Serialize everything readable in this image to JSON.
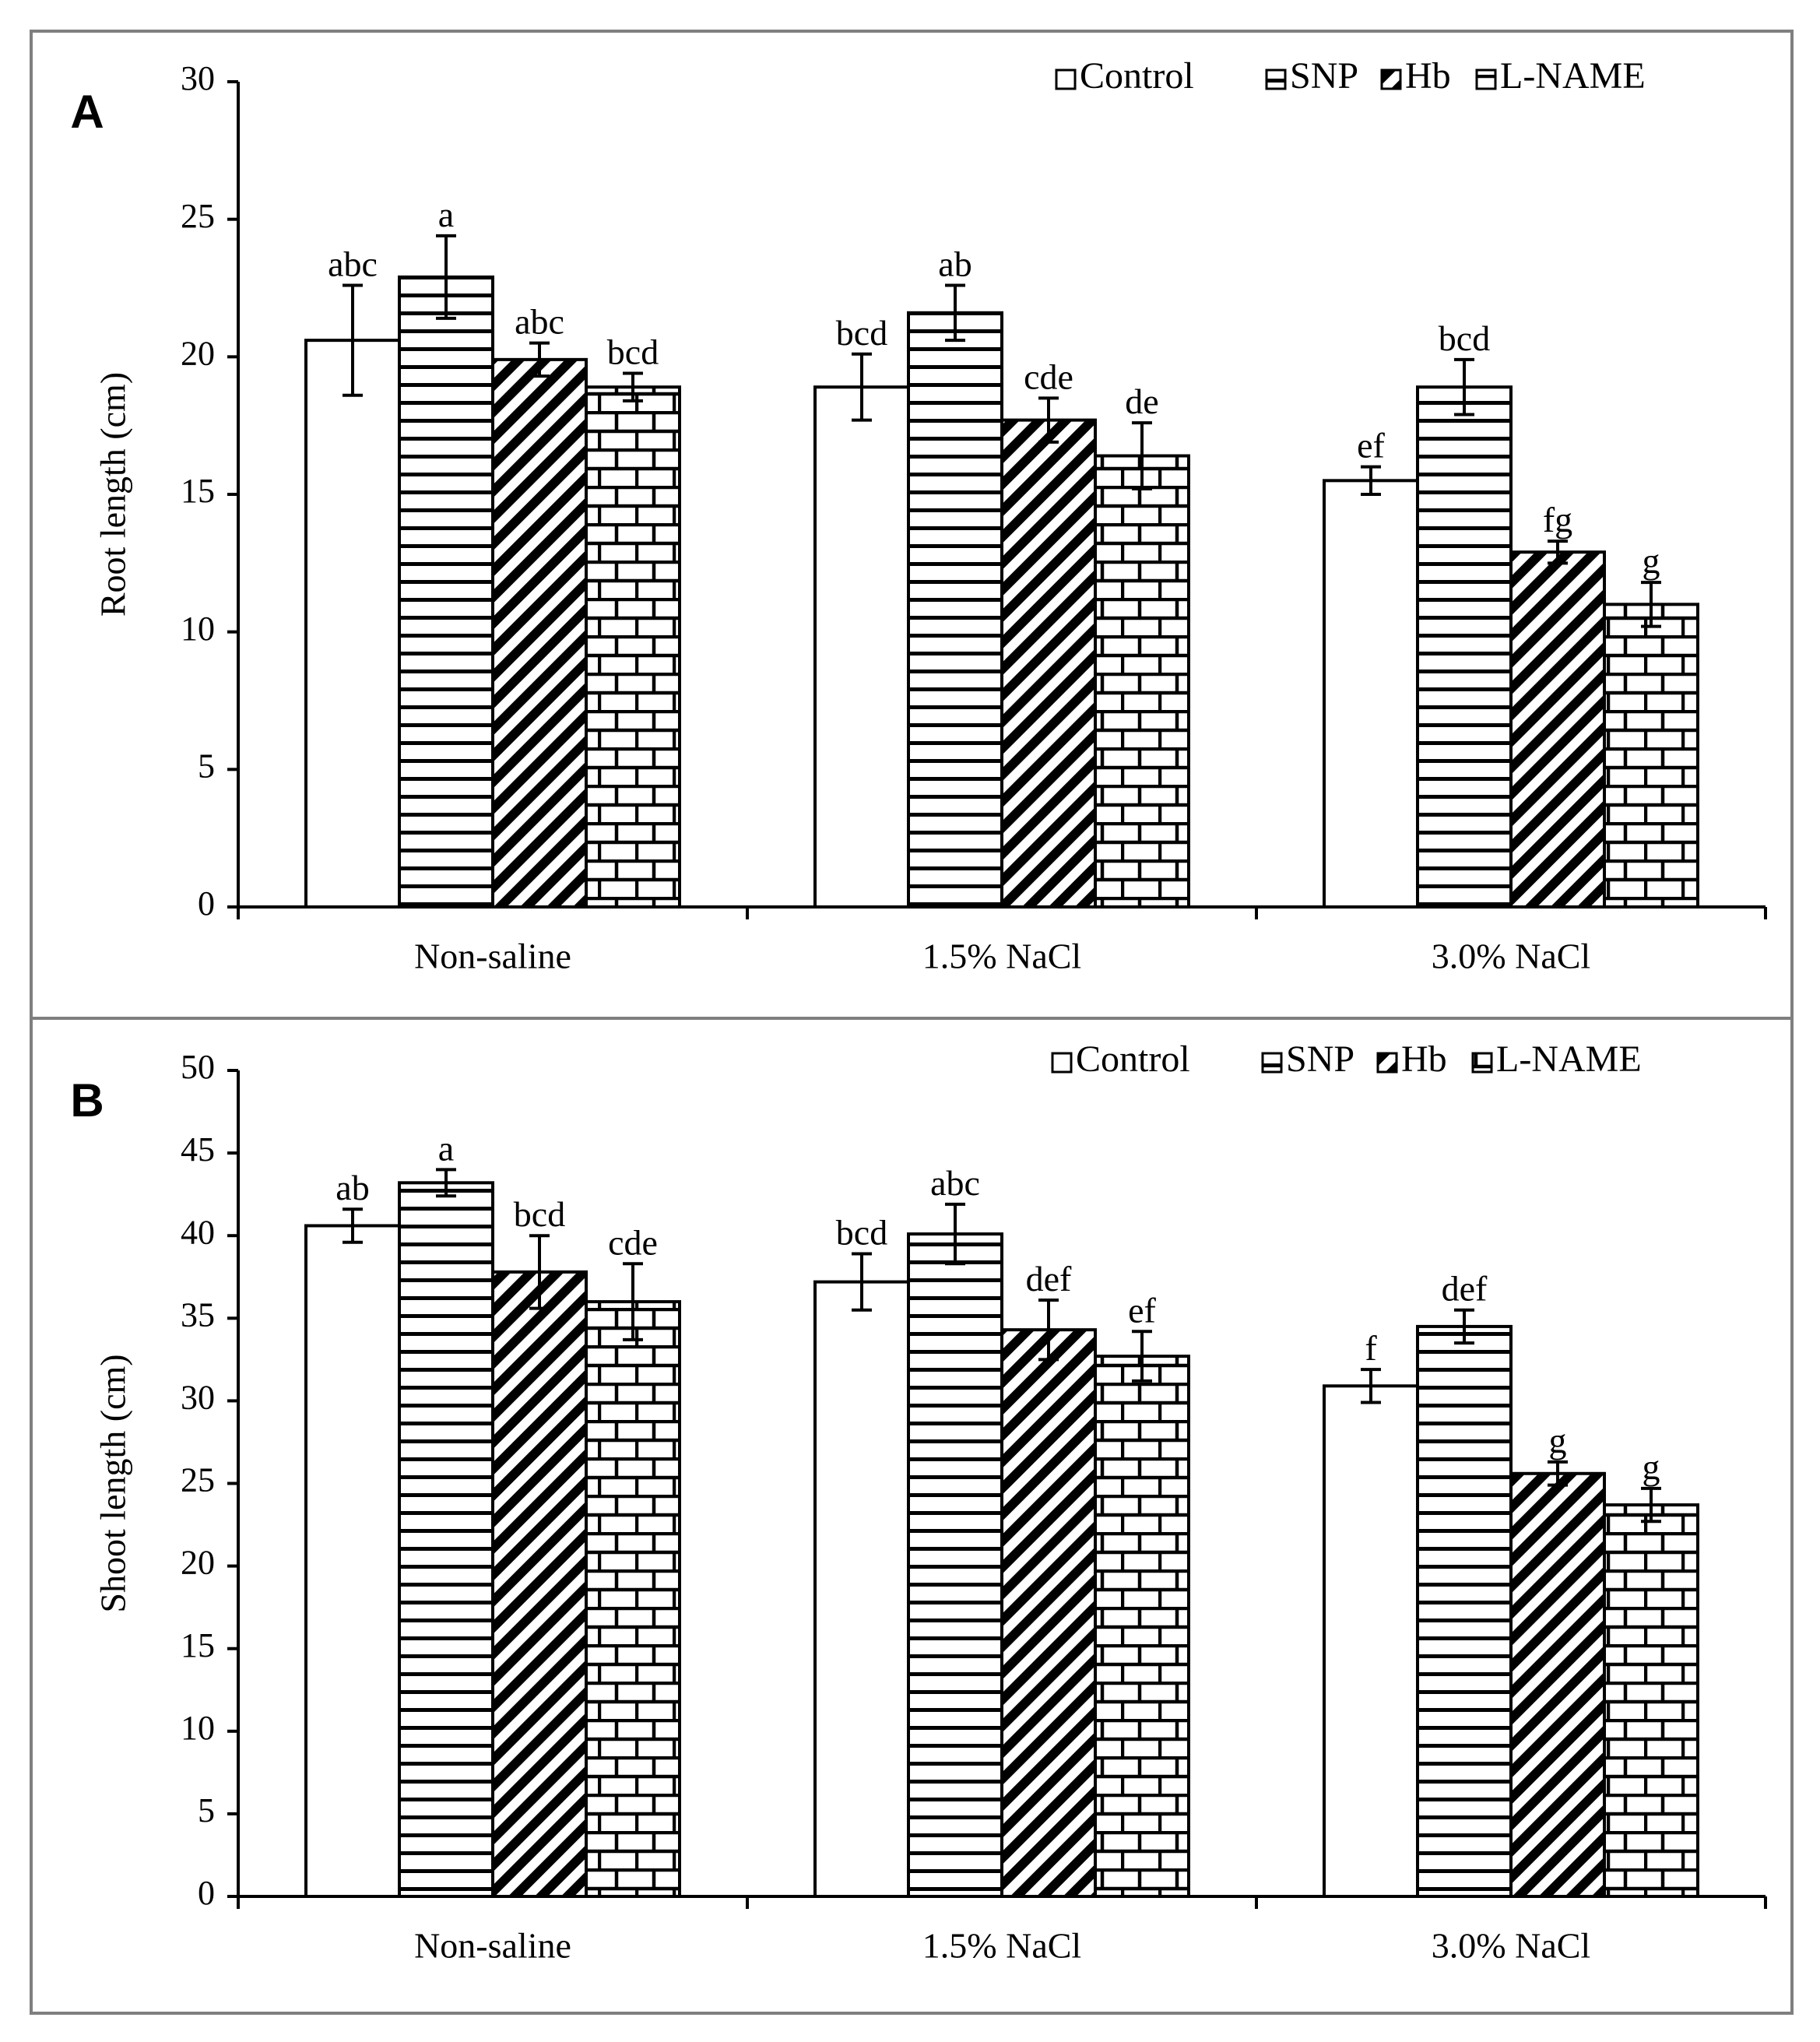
{
  "colors": {
    "ink": "#000000",
    "paper": "#ffffff",
    "frame": "#7f7f7f"
  },
  "chart_data": [
    {
      "panel": "A",
      "type": "bar",
      "title": "",
      "xlabel": "",
      "ylabel": "Root length (cm)",
      "ylim": [
        0,
        30
      ],
      "yticks": [
        0,
        5,
        10,
        15,
        20,
        25,
        30
      ],
      "categories": [
        "Non-saline",
        "1.5% NaCl",
        "3.0% NaCl"
      ],
      "legend": {
        "placement": "top-right",
        "entries": [
          "Control",
          "SNP",
          "Hb",
          "L-NAME"
        ]
      },
      "series": [
        {
          "name": "Control",
          "pattern": "none",
          "values": [
            20.6,
            18.9,
            15.5
          ],
          "errors": [
            2.0,
            1.2,
            0.5
          ],
          "letters": [
            "abc",
            "bcd",
            "ef"
          ]
        },
        {
          "name": "SNP",
          "pattern": "horizontal",
          "values": [
            22.9,
            21.6,
            18.9
          ],
          "errors": [
            1.5,
            1.0,
            1.0
          ],
          "letters": [
            "a",
            "ab",
            "bcd"
          ]
        },
        {
          "name": "Hb",
          "pattern": "diagonal",
          "values": [
            19.9,
            17.7,
            12.9
          ],
          "errors": [
            0.6,
            0.8,
            0.4
          ],
          "letters": [
            "abc",
            "cde",
            "fg"
          ]
        },
        {
          "name": "L-NAME",
          "pattern": "brick",
          "values": [
            18.9,
            16.4,
            11.0
          ],
          "errors": [
            0.5,
            1.2,
            0.8
          ],
          "letters": [
            "bcd",
            "de",
            "g"
          ]
        }
      ]
    },
    {
      "panel": "B",
      "type": "bar",
      "title": "",
      "xlabel": "",
      "ylabel": "Shoot length (cm)",
      "ylim": [
        0,
        50
      ],
      "yticks": [
        0,
        5,
        10,
        15,
        20,
        25,
        30,
        35,
        40,
        45,
        50
      ],
      "categories": [
        "Non-saline",
        "1.5% NaCl",
        "3.0% NaCl"
      ],
      "legend": {
        "placement": "top-right",
        "entries": [
          "Control",
          "SNP",
          "Hb",
          "L-NAME"
        ]
      },
      "series": [
        {
          "name": "Control",
          "pattern": "none",
          "values": [
            40.6,
            37.2,
            30.9
          ],
          "errors": [
            1.0,
            1.7,
            1.0
          ],
          "letters": [
            "ab",
            "bcd",
            "f"
          ]
        },
        {
          "name": "SNP",
          "pattern": "horizontal",
          "values": [
            43.2,
            40.1,
            34.5
          ],
          "errors": [
            0.8,
            1.8,
            1.0
          ],
          "letters": [
            "a",
            "abc",
            "def"
          ]
        },
        {
          "name": "Hb",
          "pattern": "diagonal",
          "values": [
            37.8,
            34.3,
            25.6
          ],
          "errors": [
            2.2,
            1.8,
            0.7
          ],
          "letters": [
            "bcd",
            "def",
            "g"
          ]
        },
        {
          "name": "L-NAME",
          "pattern": "brick",
          "values": [
            36.0,
            32.7,
            23.7
          ],
          "errors": [
            2.3,
            1.5,
            1.0
          ],
          "letters": [
            "cde",
            "ef",
            "g"
          ]
        }
      ]
    }
  ]
}
